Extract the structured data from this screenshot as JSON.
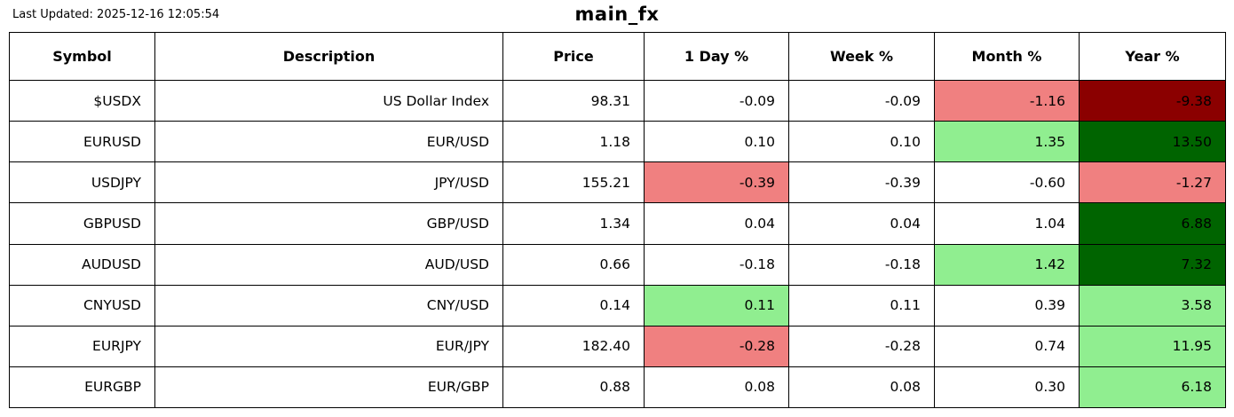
{
  "meta": {
    "last_updated": "Last Updated: 2025-12-16 12:05:54",
    "title": "main_fx"
  },
  "colors": {
    "down_light": "#F08080",
    "down_dark": "#8B0000",
    "up_light": "#90EE90",
    "up_dark": "#006400",
    "neutral": "#FFFFFF",
    "border": "#000000",
    "text": "#000000"
  },
  "table": {
    "columns": [
      "Symbol",
      "Description",
      "Price",
      "1 Day %",
      "Week %",
      "Month %",
      "Year %"
    ],
    "column_keys": [
      "symbol",
      "description",
      "price",
      "day-pct",
      "week-pct",
      "month-pct",
      "year-pct"
    ],
    "rows": [
      {
        "cells": [
          {
            "text": "$USDX"
          },
          {
            "text": "US Dollar Index"
          },
          {
            "text": "98.31"
          },
          {
            "text": "-0.09"
          },
          {
            "text": "-0.09"
          },
          {
            "text": "-1.16",
            "bg": "down_light"
          },
          {
            "text": "-9.38",
            "bg": "down_dark"
          }
        ]
      },
      {
        "cells": [
          {
            "text": "EURUSD"
          },
          {
            "text": "EUR/USD"
          },
          {
            "text": "1.18"
          },
          {
            "text": "0.10"
          },
          {
            "text": "0.10"
          },
          {
            "text": "1.35",
            "bg": "up_light"
          },
          {
            "text": "13.50",
            "bg": "up_dark"
          }
        ]
      },
      {
        "cells": [
          {
            "text": "USDJPY"
          },
          {
            "text": "JPY/USD"
          },
          {
            "text": "155.21"
          },
          {
            "text": "-0.39",
            "bg": "down_light"
          },
          {
            "text": "-0.39"
          },
          {
            "text": "-0.60"
          },
          {
            "text": "-1.27",
            "bg": "down_light"
          }
        ]
      },
      {
        "cells": [
          {
            "text": "GBPUSD"
          },
          {
            "text": "GBP/USD"
          },
          {
            "text": "1.34"
          },
          {
            "text": "0.04"
          },
          {
            "text": "0.04"
          },
          {
            "text": "1.04"
          },
          {
            "text": "6.88",
            "bg": "up_dark"
          }
        ]
      },
      {
        "cells": [
          {
            "text": "AUDUSD"
          },
          {
            "text": "AUD/USD"
          },
          {
            "text": "0.66"
          },
          {
            "text": "-0.18"
          },
          {
            "text": "-0.18"
          },
          {
            "text": "1.42",
            "bg": "up_light"
          },
          {
            "text": "7.32",
            "bg": "up_dark"
          }
        ]
      },
      {
        "cells": [
          {
            "text": "CNYUSD"
          },
          {
            "text": "CNY/USD"
          },
          {
            "text": "0.14"
          },
          {
            "text": "0.11",
            "bg": "up_light"
          },
          {
            "text": "0.11"
          },
          {
            "text": "0.39"
          },
          {
            "text": "3.58",
            "bg": "up_light"
          }
        ]
      },
      {
        "cells": [
          {
            "text": "EURJPY"
          },
          {
            "text": "EUR/JPY"
          },
          {
            "text": "182.40"
          },
          {
            "text": "-0.28",
            "bg": "down_light"
          },
          {
            "text": "-0.28"
          },
          {
            "text": "0.74"
          },
          {
            "text": "11.95",
            "bg": "up_light"
          }
        ]
      },
      {
        "cells": [
          {
            "text": "EURGBP"
          },
          {
            "text": "EUR/GBP"
          },
          {
            "text": "0.88"
          },
          {
            "text": "0.08"
          },
          {
            "text": "0.08"
          },
          {
            "text": "0.30"
          },
          {
            "text": "6.18",
            "bg": "up_light"
          }
        ]
      }
    ]
  }
}
